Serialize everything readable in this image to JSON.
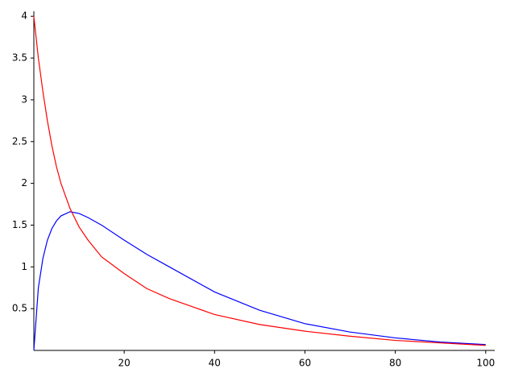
{
  "chart_data": {
    "type": "line",
    "x": [
      0,
      1,
      2,
      3,
      4,
      5,
      6,
      8,
      10,
      12,
      15,
      20,
      25,
      30,
      40,
      50,
      60,
      70,
      80,
      90,
      100
    ],
    "series": [
      {
        "color": "#0000ff",
        "values": [
          0,
          0.75,
          1.1,
          1.32,
          1.46,
          1.55,
          1.61,
          1.66,
          1.64,
          1.59,
          1.5,
          1.32,
          1.15,
          1.0,
          0.7,
          0.48,
          0.32,
          0.22,
          0.15,
          0.1,
          0.07
        ]
      },
      {
        "color": "#ff0000",
        "values": [
          4.0,
          3.5,
          3.1,
          2.75,
          2.45,
          2.2,
          2.0,
          1.7,
          1.48,
          1.32,
          1.12,
          0.92,
          0.74,
          0.62,
          0.43,
          0.31,
          0.23,
          0.17,
          0.12,
          0.09,
          0.06
        ]
      }
    ],
    "xlim": [
      0,
      102
    ],
    "ylim": [
      0,
      4.06
    ],
    "xticks": [
      20,
      40,
      60,
      80,
      100
    ],
    "yticks": [
      0.5,
      1,
      1.5,
      2,
      2.5,
      3,
      3.5,
      4
    ]
  }
}
